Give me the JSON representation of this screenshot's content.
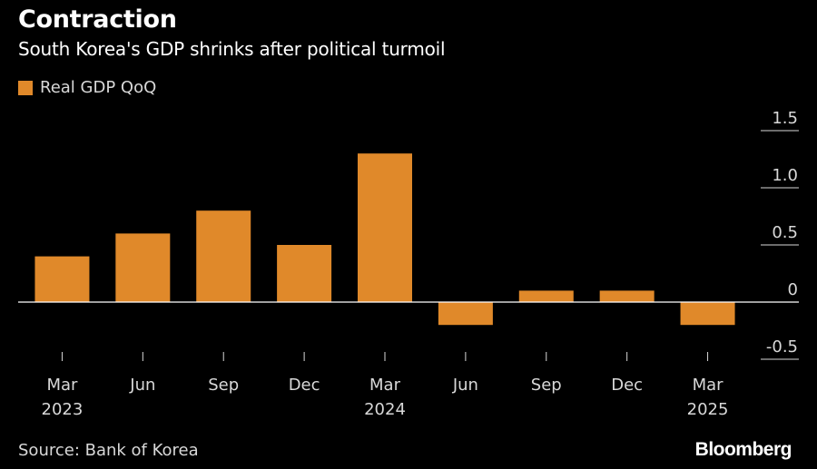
{
  "header": {
    "title": "Contraction",
    "subtitle": "South Korea's GDP shrinks after political turmoil"
  },
  "footer": {
    "source": "Source: Bank of Korea",
    "brand": "Bloomberg"
  },
  "colors": {
    "bar": "#e0892a",
    "background": "#000000",
    "text": "#ffffff",
    "muted": "#d8d8d8",
    "axis": "#ffffff",
    "tick": "#8a8a8a"
  },
  "chart_data": {
    "type": "bar",
    "title": "Contraction",
    "subtitle": "South Korea's GDP shrinks after political turmoil",
    "categories": [
      "Mar",
      "Jun",
      "Sep",
      "Dec",
      "Mar",
      "Jun",
      "Sep",
      "Dec",
      "Mar"
    ],
    "category_years": [
      "2023",
      "",
      "",
      "",
      "2024",
      "",
      "",
      "",
      "2025"
    ],
    "series": [
      {
        "name": "Real GDP QoQ",
        "values": [
          0.4,
          0.6,
          0.8,
          0.5,
          1.3,
          -0.2,
          0.1,
          0.1,
          -0.2
        ]
      }
    ],
    "ylim": [
      -0.5,
      1.5
    ],
    "yticks": [
      "1.5",
      "1.0",
      "0.5",
      "0",
      "-0.5"
    ],
    "ytick_values": [
      1.5,
      1.0,
      0.5,
      0,
      -0.5
    ],
    "y_axis_side": "right",
    "grid": false,
    "legend_position": "top-left"
  }
}
